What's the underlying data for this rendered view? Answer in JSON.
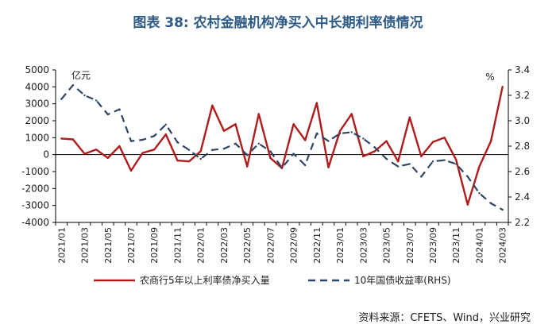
{
  "title": "图表 38: 农村金融机构净买入中长期利率债情况",
  "source": "资料来源：CFETS、Wind，兴业研究",
  "chart_data": {
    "type": "line",
    "x": [
      "2021/01",
      "2021/02",
      "2021/03",
      "2021/04",
      "2021/05",
      "2021/06",
      "2021/07",
      "2021/08",
      "2021/09",
      "2021/10",
      "2021/11",
      "2021/12",
      "2022/01",
      "2022/02",
      "2022/03",
      "2022/04",
      "2022/05",
      "2022/06",
      "2022/07",
      "2022/08",
      "2022/09",
      "2022/10",
      "2022/11",
      "2022/12",
      "2023/01",
      "2023/02",
      "2023/03",
      "2023/04",
      "2023/05",
      "2023/06",
      "2023/07",
      "2023/08",
      "2023/09",
      "2023/10",
      "2023/11",
      "2023/12",
      "2024/01",
      "2024/02",
      "2024/03"
    ],
    "x_tick_labels": [
      "2021/01",
      "2021/03",
      "2021/05",
      "2021/07",
      "2021/09",
      "2021/11",
      "2022/01",
      "2022/03",
      "2022/05",
      "2022/07",
      "2022/09",
      "2022/11",
      "2023/01",
      "2023/03",
      "2023/05",
      "2023/07",
      "2023/09",
      "2023/11",
      "2024/01",
      "2024/03"
    ],
    "left_axis": {
      "unit": "亿元",
      "ylim": [
        -4000,
        5000
      ],
      "ticks": [
        "5000",
        "4000",
        "3000",
        "2000",
        "1000",
        "0",
        "-1000",
        "-2000",
        "-3000",
        "-4000"
      ]
    },
    "right_axis": {
      "unit": "%",
      "ylim": [
        2.2,
        3.4
      ],
      "ticks": [
        "3.4",
        "3.2",
        "3.0",
        "2.8",
        "2.6",
        "2.4",
        "2.2"
      ]
    },
    "series": [
      {
        "name": "农商行5年以上利率债净买入量",
        "axis": "left",
        "color": "#b01c1c",
        "style": "solid",
        "values": [
          950,
          900,
          50,
          300,
          -200,
          500,
          -950,
          100,
          300,
          1200,
          -350,
          -400,
          200,
          2900,
          1400,
          1800,
          -700,
          2400,
          -200,
          -800,
          1800,
          850,
          3050,
          -750,
          1400,
          2400,
          -100,
          200,
          800,
          -400,
          2200,
          -100,
          750,
          1000,
          -300,
          -2950,
          -700,
          800,
          4000
        ]
      },
      {
        "name": "10年国债收益率(RHS)",
        "axis": "right",
        "color": "#2f4566",
        "style": "dashed",
        "values": [
          3.17,
          3.28,
          3.2,
          3.16,
          3.05,
          3.09,
          2.84,
          2.85,
          2.88,
          2.97,
          2.83,
          2.77,
          2.7,
          2.77,
          2.78,
          2.82,
          2.73,
          2.82,
          2.76,
          2.63,
          2.74,
          2.65,
          2.9,
          2.84,
          2.9,
          2.91,
          2.86,
          2.79,
          2.7,
          2.64,
          2.66,
          2.56,
          2.68,
          2.69,
          2.66,
          2.56,
          2.43,
          2.35,
          2.3
        ]
      }
    ],
    "legend_position": "bottom",
    "grid": false
  }
}
